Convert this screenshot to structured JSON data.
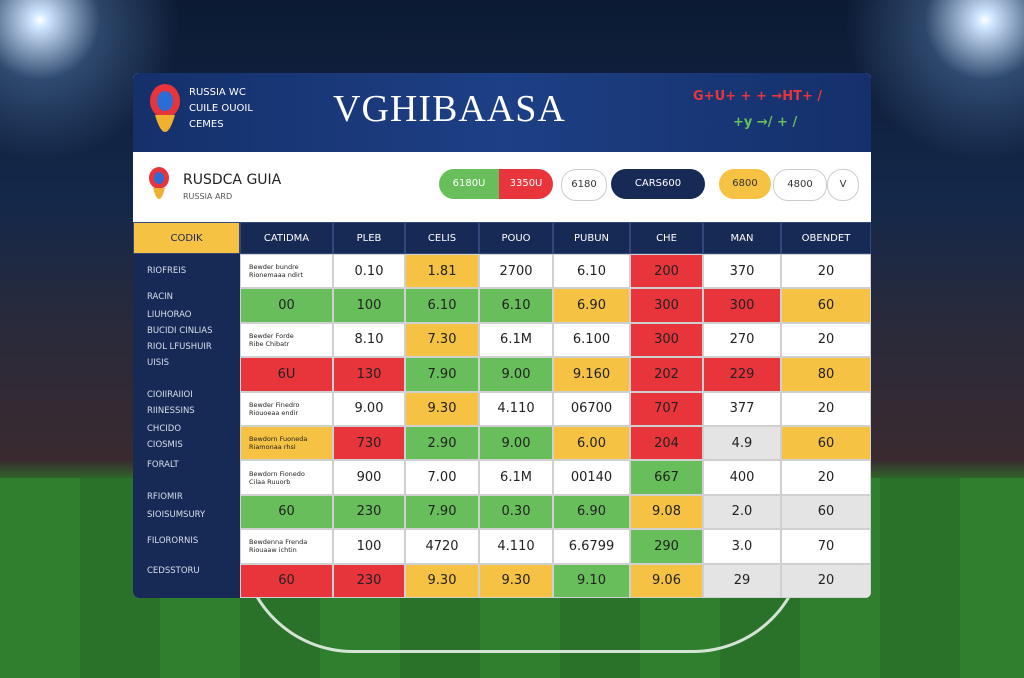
{
  "header": {
    "logo_lines": [
      "RUSSIA WC",
      "CUILE OUOIL",
      "CEMES"
    ],
    "title": "VGHIBAASA",
    "badges": [
      "G+U+ + + →HT+ /",
      "+y →/ + /"
    ]
  },
  "subheader": {
    "name": "RUSDCA GUIA",
    "subname": "RUSSIA ARD",
    "buttons": [
      "6180U",
      "3350U",
      "6180",
      "CARS600",
      "6800",
      "4800",
      "V"
    ]
  },
  "sidebar": {
    "items": [
      "RIOFREIS",
      "RACIN",
      "LIUHORAO",
      "BUCIDI CINLIAS",
      "RIOL LFUSHUIR",
      "UISIS",
      "CIOIIRAIIOI",
      "RIINESSINS",
      "CHCIDO",
      "CIOSMIS",
      "FORALT",
      "RFIOMIR",
      "SIOISUMSURY",
      "FILORORNIS",
      "CEDSSTORU"
    ]
  },
  "table": {
    "columns": [
      "CODIK",
      "CATIDMA",
      "PLEB",
      "CELIS",
      "POUO",
      "PUBUN",
      "CHE",
      "MAN",
      "OBENDET"
    ],
    "rows": [
      [
        "Bewder bundre\nRionemaaa ndirt",
        "0.10",
        "1.81",
        "2700",
        "6.10",
        "200",
        "370",
        "20"
      ],
      [
        "00",
        "100",
        "6.10",
        "6.10",
        "6.90",
        "300",
        "300",
        "60"
      ],
      [
        "Bewder Forde\nRibe Chibatr",
        "8.10",
        "7.30",
        "6.1M",
        "6.100",
        "300",
        "270",
        "20"
      ],
      [
        "6U",
        "130",
        "7.90",
        "9.00",
        "9.160",
        "202",
        "229",
        "80"
      ],
      [
        "Bewder Finedro\nRiouoeaa endir",
        "9.00",
        "9.30",
        "4.110",
        "06700",
        "707",
        "377",
        "20"
      ],
      [
        "Bewdorn Fuoneda\nRiamonaa rhsi",
        "730",
        "2.90",
        "9.00",
        "6.00",
        "204",
        "4.9",
        "60"
      ],
      [
        "Bewdorn Fionedo\nCilaa Ruuorb",
        "900",
        "7.00",
        "6.1M",
        "00140",
        "667",
        "400",
        "20"
      ],
      [
        "60",
        "230",
        "7.90",
        "0.30",
        "6.90",
        "9.08",
        "2.0",
        "60"
      ],
      [
        "Bewdenna Frenda\nRiouaaw ichtin",
        "100",
        "4720",
        "4.110",
        "6.6799",
        "290",
        "3.0",
        "70"
      ],
      [
        "60",
        "230",
        "9.30",
        "9.30",
        "9.10",
        "9.06",
        "29",
        "20"
      ]
    ],
    "cell_colors": [
      [
        "#ffffff",
        "#ffffff",
        "#f6c244",
        "#ffffff",
        "#ffffff",
        "#e8353c",
        "#ffffff",
        "#ffffff"
      ],
      [
        "#67be5a",
        "#67be5a",
        "#67be5a",
        "#67be5a",
        "#f6c244",
        "#e8353c",
        "#e8353c",
        "#f6c244"
      ],
      [
        "#ffffff",
        "#ffffff",
        "#f6c244",
        "#ffffff",
        "#ffffff",
        "#e8353c",
        "#ffffff",
        "#ffffff"
      ],
      [
        "#e8353c",
        "#e8353c",
        "#67be5a",
        "#67be5a",
        "#f6c244",
        "#e8353c",
        "#e8353c",
        "#f6c244"
      ],
      [
        "#ffffff",
        "#ffffff",
        "#f6c244",
        "#ffffff",
        "#ffffff",
        "#e8353c",
        "#ffffff",
        "#ffffff"
      ],
      [
        "#f6c244",
        "#e8353c",
        "#67be5a",
        "#67be5a",
        "#f6c244",
        "#e8353c",
        "#e4e4e4",
        "#f6c244"
      ],
      [
        "#ffffff",
        "#ffffff",
        "#ffffff",
        "#ffffff",
        "#ffffff",
        "#67be5a",
        "#ffffff",
        "#ffffff"
      ],
      [
        "#67be5a",
        "#67be5a",
        "#67be5a",
        "#67be5a",
        "#67be5a",
        "#f6c244",
        "#e4e4e4",
        "#e4e4e4"
      ],
      [
        "#ffffff",
        "#ffffff",
        "#ffffff",
        "#ffffff",
        "#ffffff",
        "#67be5a",
        "#ffffff",
        "#ffffff"
      ],
      [
        "#e8353c",
        "#e8353c",
        "#f6c244",
        "#f6c244",
        "#67be5a",
        "#f6c244",
        "#e4e4e4",
        "#e4e4e4"
      ]
    ]
  }
}
